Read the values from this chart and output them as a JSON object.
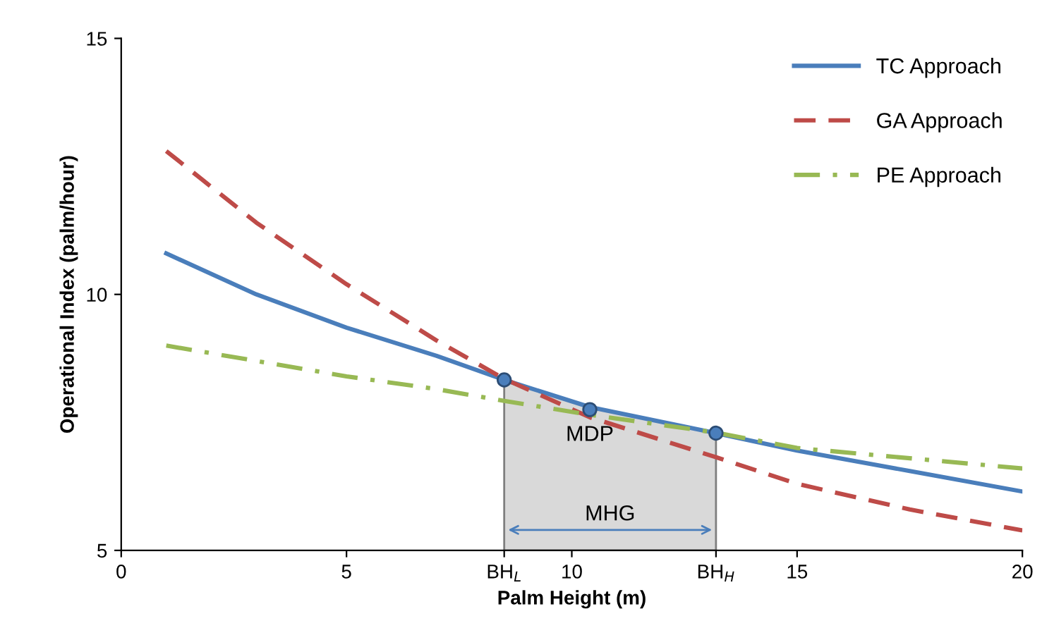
{
  "chart_data": {
    "type": "line",
    "xlabel": "Palm Height (m)",
    "ylabel": "Operational Index (palm/hour)",
    "xlim": [
      0,
      20
    ],
    "ylim": [
      5,
      15
    ],
    "xticks": [
      0,
      5,
      {
        "value": 8.5,
        "label": "BH$_{L}$"
      },
      10,
      {
        "value": 13.2,
        "label": "BH$_{H}$"
      },
      15,
      20
    ],
    "yticks": [
      5,
      10,
      15
    ],
    "grid": false,
    "legend": "top right",
    "series": [
      {
        "name": "TC Approach",
        "color": "#4a7ebb",
        "line_style": "solid",
        "x": [
          1,
          3,
          5,
          7,
          8.5,
          10.4,
          13.2,
          15,
          17.5,
          20
        ],
        "values": [
          10.8,
          10.0,
          9.35,
          8.8,
          8.33,
          7.8,
          7.29,
          6.95,
          6.55,
          6.15
        ]
      },
      {
        "name": "GA Approach",
        "color": "#be4b48",
        "line_style": "dashed",
        "x": [
          1,
          3,
          5,
          7,
          8.5,
          10.4,
          13.2,
          15,
          17.5,
          20
        ],
        "values": [
          12.8,
          11.4,
          10.2,
          9.1,
          8.35,
          7.6,
          6.82,
          6.3,
          5.8,
          5.39
        ]
      },
      {
        "name": "PE Approach",
        "color": "#98b954",
        "line_style": "dashdot",
        "x": [
          1,
          3,
          5,
          7,
          8.5,
          10.4,
          13.2,
          15,
          17.5,
          20
        ],
        "values": [
          9.0,
          8.7,
          8.4,
          8.15,
          7.92,
          7.65,
          7.3,
          7.0,
          6.8,
          6.6
        ]
      },
      {
        "type": "area",
        "color": "#d9d9d9",
        "x": [
          8.5,
          10.4,
          13.2
        ],
        "values": [
          8.33,
          7.8,
          7.29
        ]
      },
      {
        "type": "scatter",
        "color": "#4a7ebb",
        "marker": "circle",
        "x": [
          8.5,
          10.4,
          13.2
        ],
        "values": [
          8.33,
          7.75,
          7.29
        ]
      }
    ],
    "annotations": [
      {
        "text": "MDP",
        "x": 10.4,
        "y": 7.75
      },
      "MHG"
    ]
  }
}
